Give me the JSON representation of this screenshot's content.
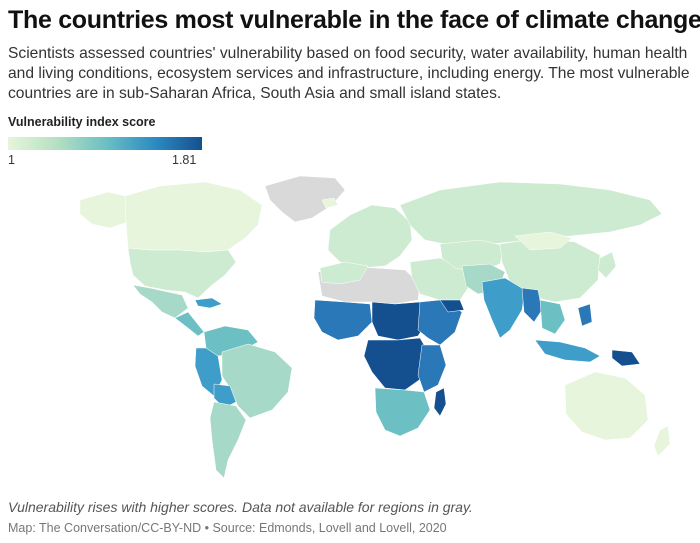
{
  "header": {
    "title": "The countries most vulnerable in the face of climate change",
    "subtitle": "Scientists assessed countries' vulnerability based on food security, water availability, human health and living conditions, ecosystem services and infrastructure, including energy. The most vulnerable countries are in sub-Saharan Africa, South Asia and small island states."
  },
  "legend": {
    "title": "Vulnerability index score",
    "min_label": "1",
    "max_label": "1.81",
    "color_low": "#e6f5dc",
    "color_high": "#14508f"
  },
  "footer": {
    "note": "Vulnerability rises with higher scores. Data not available for regions in gray.",
    "source": "Map: The Conversation/CC-BY-ND • Source: Edmonds, Lovell and Lovell, 2020"
  },
  "colors": {
    "no_data": "#d9d9d9",
    "level_1": "#e6f5dc",
    "level_2": "#cdebd0",
    "level_3": "#a7d9c9",
    "level_4": "#6cc0c4",
    "level_5": "#3f9ec9",
    "level_6": "#2a78b8",
    "level_7": "#14508f"
  }
}
